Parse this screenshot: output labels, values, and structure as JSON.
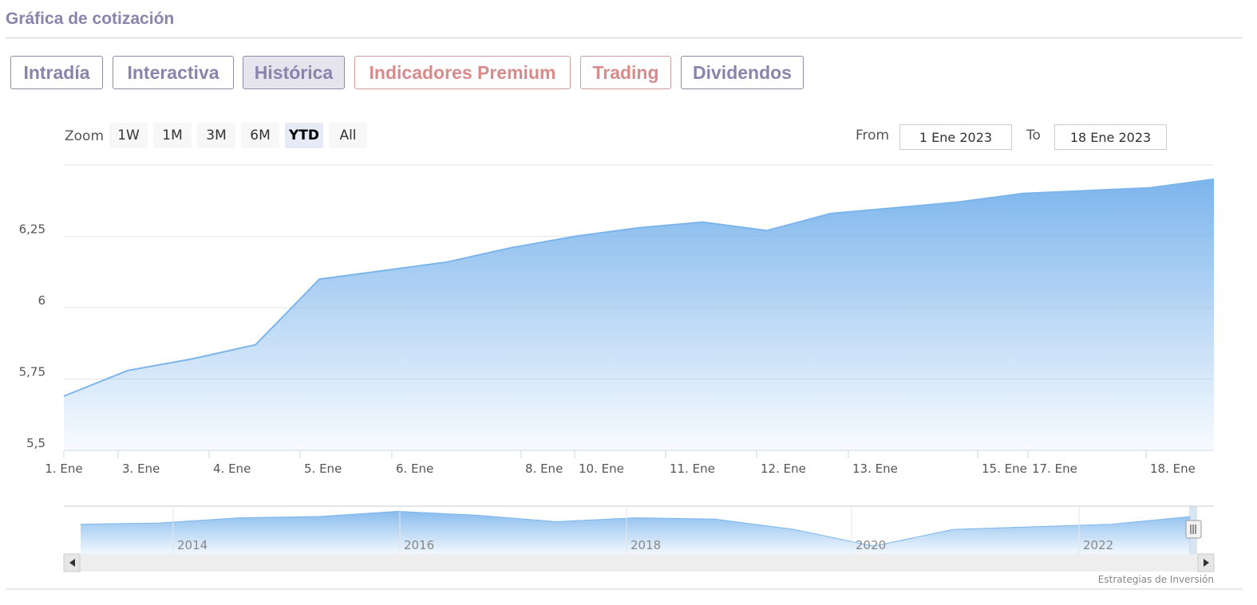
{
  "header": {
    "title": "Gráfica de cotización"
  },
  "tabs": [
    {
      "label": "Intradía",
      "active": false,
      "premium": false
    },
    {
      "label": "Interactiva",
      "active": false,
      "premium": false
    },
    {
      "label": "Histórica",
      "active": true,
      "premium": false
    },
    {
      "label": "Indicadores Premium",
      "active": false,
      "premium": true
    },
    {
      "label": "Trading",
      "active": false,
      "premium": true
    },
    {
      "label": "Dividendos",
      "active": false,
      "premium": false
    }
  ],
  "zoom": {
    "label": "Zoom",
    "buttons": [
      "1W",
      "1M",
      "3M",
      "6M",
      "YTD",
      "All"
    ],
    "active": "YTD"
  },
  "range": {
    "from_label": "From",
    "from_value": "1 Ene 2023",
    "to_label": "To",
    "to_value": "18 Ene 2023"
  },
  "colors": {
    "series": "#7cb5ec",
    "accent": "#8a84ad",
    "premium": "#d98a8a"
  },
  "credit": "Estrategias de Inversión",
  "chart_data": {
    "type": "area",
    "title": "",
    "xlabel": "",
    "ylabel": "",
    "x_ticks": [
      "1. Ene",
      "3. Ene",
      "4. Ene",
      "5. Ene",
      "6. Ene",
      "8. Ene",
      "10. Ene",
      "11. Ene",
      "12. Ene",
      "13. Ene",
      "15. Ene",
      "17. Ene",
      "18. Ene"
    ],
    "y_ticks": [
      5.5,
      5.75,
      6,
      6.25
    ],
    "y_tick_labels": [
      "5,5",
      "5,75",
      "6",
      "6,25"
    ],
    "ylim": [
      5.5,
      6.5
    ],
    "xlim": [
      "2023-01-01",
      "2023-01-19"
    ],
    "grid": true,
    "legend": "none",
    "series": [
      {
        "x": [
          "2023-01-01",
          "2023-01-02",
          "2023-01-03",
          "2023-01-04",
          "2023-01-05",
          "2023-01-06",
          "2023-01-07",
          "2023-01-08",
          "2023-01-09",
          "2023-01-10",
          "2023-01-11",
          "2023-01-12",
          "2023-01-13",
          "2023-01-14",
          "2023-01-15",
          "2023-01-16",
          "2023-01-17",
          "2023-01-18",
          "2023-01-19"
        ],
        "y": [
          5.69,
          5.78,
          5.82,
          5.87,
          6.1,
          6.13,
          6.16,
          6.21,
          6.25,
          6.28,
          6.3,
          6.27,
          6.33,
          6.35,
          6.37,
          6.4,
          6.41,
          6.42,
          6.45
        ]
      }
    ],
    "navigator": {
      "labels": [
        "2014",
        "2016",
        "2018",
        "2020",
        "2022"
      ],
      "series": [
        5.8,
        5.9,
        6.3,
        6.4,
        6.8,
        6.5,
        6.0,
        6.3,
        6.2,
        5.4,
        4.1,
        5.4,
        5.6,
        5.8,
        6.4
      ]
    }
  }
}
